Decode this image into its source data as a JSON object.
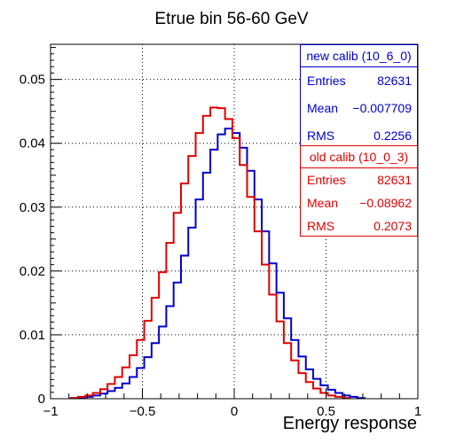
{
  "chart_data": {
    "type": "line",
    "step": true,
    "title": "Etrue bin 56-60 GeV",
    "xlabel": "Energy response",
    "ylabel": "",
    "xlim": [
      -1,
      1
    ],
    "ylim": [
      0,
      0.0555
    ],
    "x_ticks": [
      "−1",
      "−0.5",
      "0",
      "0.5",
      "1"
    ],
    "y_ticks": [
      "0",
      "0.01",
      "0.02",
      "0.03",
      "0.04",
      "0.05"
    ],
    "grid": true,
    "bin_width": 0.02,
    "series": [
      {
        "name": "new calib (10_6_0)",
        "color": "#0000cc",
        "bin_centers": [
          -0.87,
          -0.83,
          -0.79,
          -0.75,
          -0.71,
          -0.67,
          -0.63,
          -0.59,
          -0.55,
          -0.51,
          -0.47,
          -0.43,
          -0.39,
          -0.35,
          -0.31,
          -0.27,
          -0.23,
          -0.19,
          -0.15,
          -0.11,
          -0.07,
          -0.03,
          0.01,
          0.05,
          0.09,
          0.13,
          0.17,
          0.21,
          0.25,
          0.29,
          0.33,
          0.37,
          0.41,
          0.45,
          0.49,
          0.53,
          0.57,
          0.61,
          0.65,
          0.69
        ],
        "values": [
          0.0001,
          0.0002,
          0.0003,
          0.0005,
          0.0008,
          0.0012,
          0.0017,
          0.0024,
          0.0034,
          0.0048,
          0.0065,
          0.0087,
          0.0113,
          0.0145,
          0.0182,
          0.0224,
          0.0268,
          0.0312,
          0.0354,
          0.039,
          0.0414,
          0.0423,
          0.0416,
          0.0393,
          0.0357,
          0.0312,
          0.0262,
          0.0212,
          0.0166,
          0.0126,
          0.0092,
          0.0066,
          0.0046,
          0.0031,
          0.0021,
          0.0014,
          0.0009,
          0.0005,
          0.0003,
          0.0001
        ]
      },
      {
        "name": "old calib (10_0_3)",
        "color": "#e00000",
        "bin_centers": [
          -0.87,
          -0.83,
          -0.79,
          -0.75,
          -0.71,
          -0.67,
          -0.63,
          -0.59,
          -0.55,
          -0.51,
          -0.47,
          -0.43,
          -0.39,
          -0.35,
          -0.31,
          -0.27,
          -0.23,
          -0.19,
          -0.15,
          -0.11,
          -0.07,
          -0.03,
          0.01,
          0.05,
          0.09,
          0.13,
          0.17,
          0.21,
          0.25,
          0.29,
          0.33,
          0.37,
          0.41,
          0.45,
          0.49,
          0.53,
          0.57,
          0.61
        ],
        "values": [
          0.0001,
          0.0003,
          0.0005,
          0.0009,
          0.0015,
          0.0023,
          0.0034,
          0.0049,
          0.0068,
          0.0092,
          0.0122,
          0.0158,
          0.0198,
          0.0244,
          0.0291,
          0.0337,
          0.038,
          0.0416,
          0.0443,
          0.0456,
          0.0455,
          0.0438,
          0.0408,
          0.0366,
          0.0316,
          0.0262,
          0.021,
          0.0163,
          0.0121,
          0.0087,
          0.006,
          0.004,
          0.0026,
          0.0016,
          0.0009,
          0.0005,
          0.0003,
          0.0001
        ]
      }
    ]
  },
  "stats": {
    "new": {
      "title": "new calib (10_6_0)",
      "entries_label": "Entries",
      "entries": "82631",
      "mean_label": "Mean",
      "mean": "−0.007709",
      "rms_label": "RMS",
      "rms": "0.2256",
      "color": "#0000cc"
    },
    "old": {
      "title": "old calib (10_0_3)",
      "entries_label": "Entries",
      "entries": "82631",
      "mean_label": "Mean",
      "mean": "−0.08962",
      "rms_label": "RMS",
      "rms": "0.2073",
      "color": "#e00000"
    }
  }
}
